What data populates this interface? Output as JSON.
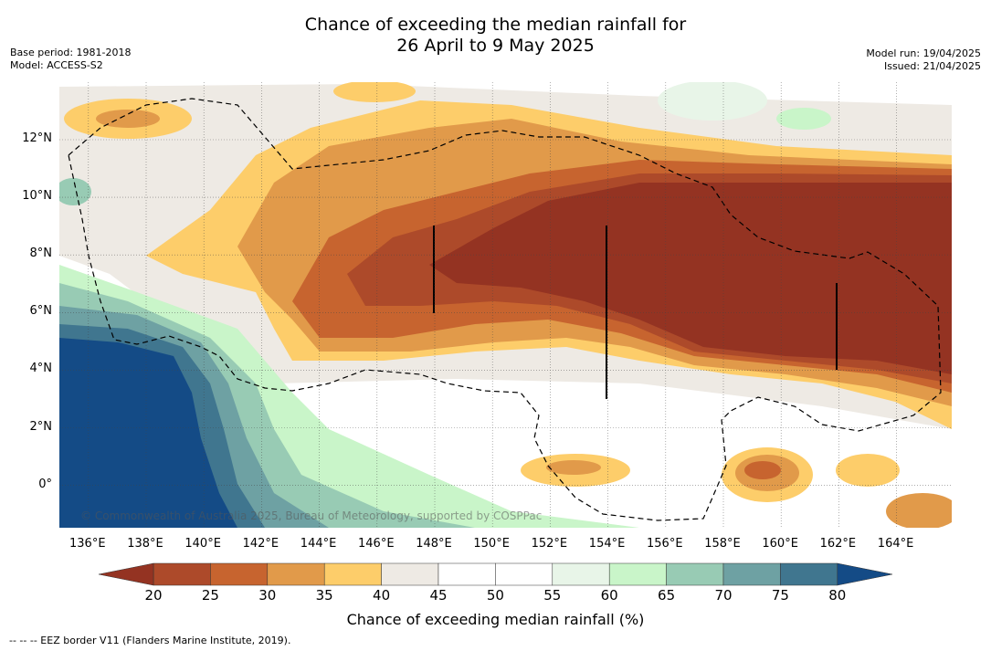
{
  "title": {
    "line1": "Chance of exceeding the median rainfall for",
    "line2": "26 April to 9 May 2025"
  },
  "meta_left": {
    "base_period": "Base period: 1981-2018",
    "model": "Model: ACCESS-S2"
  },
  "meta_right": {
    "model_run": "Model run: 19/04/2025",
    "issued": "Issued: 21/04/2025"
  },
  "map": {
    "lon_labels": [
      "136°E",
      "138°E",
      "140°E",
      "142°E",
      "144°E",
      "146°E",
      "148°E",
      "150°E",
      "152°E",
      "154°E",
      "156°E",
      "158°E",
      "160°E",
      "162°E",
      "164°E"
    ],
    "lat_labels": [
      "12°N",
      "10°N",
      "8°N",
      "6°N",
      "4°N",
      "2°N",
      "0°"
    ],
    "copyright": "© Commonwealth of Australia 2025, Bureau of Meteorology, supported by COSPPac"
  },
  "colorbar": {
    "ticks": [
      "20",
      "25",
      "30",
      "35",
      "40",
      "45",
      "50",
      "55",
      "60",
      "65",
      "70",
      "75",
      "80"
    ],
    "colors": [
      "#ad4a2a",
      "#c7642f",
      "#e19a4a",
      "#fdcd6a",
      "#eeeae4",
      "#ffffff",
      "#ffffff",
      "#e8f5e8",
      "#c9f5c9",
      "#98cbb4",
      "#6ea1a3",
      "#40768f"
    ],
    "low_color": "#943322",
    "high_color": "#144b86",
    "label": "Chance of exceeding median rainfall (%)"
  },
  "footnote": "--  --  -- EEZ border V11 (Flanders Marine Institute, 2019)."
}
